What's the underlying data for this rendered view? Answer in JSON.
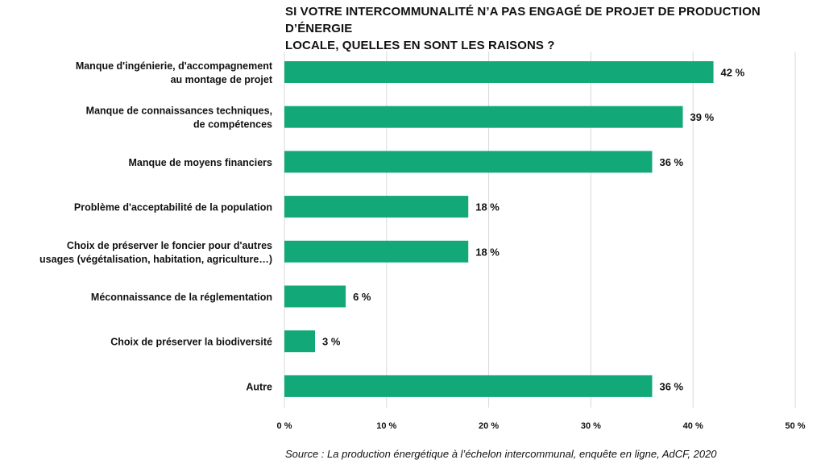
{
  "title_lines": [
    "SI VOTRE INTERCOMMUNALITÉ N’A PAS ENGAGÉ DE PROJET DE PRODUCTION D’ÉNERGIE",
    "LOCALE, QUELLES EN SONT LES RAISONS ?"
  ],
  "source": "Source : La production énergétique à l’échelon intercommunal, enquête en ligne, AdCF, 2020",
  "colors": {
    "bar": "#12A878",
    "grid": "#d9d9d9",
    "text": "#111111"
  },
  "chart_data": {
    "type": "bar",
    "orientation": "horizontal",
    "categories": [
      [
        "Manque d'ingénierie, d'accompagnement",
        "au montage de projet"
      ],
      [
        "Manque de connaissances techniques,",
        "de compétences"
      ],
      [
        "Manque de moyens financiers"
      ],
      [
        "Problème d'acceptabilité de la population"
      ],
      [
        "Choix de préserver le foncier pour d'autres",
        "usages (végétalisation, habitation, agriculture…)"
      ],
      [
        "Méconnaissance de la réglementation"
      ],
      [
        "Choix de préserver la biodiversité"
      ],
      [
        "Autre"
      ]
    ],
    "values": [
      42,
      39,
      36,
      18,
      18,
      6,
      3,
      36
    ],
    "value_labels": [
      "42 %",
      "39 %",
      "36 %",
      "18 %",
      "18 %",
      "6 %",
      "3 %",
      "36 %"
    ],
    "xlim": [
      0,
      50
    ],
    "xticks": [
      0,
      10,
      20,
      30,
      40,
      50
    ],
    "xtick_labels": [
      "0 %",
      "10 %",
      "20 %",
      "30 %",
      "40 %",
      "50 %"
    ],
    "grid": "vertical",
    "xlabel": "",
    "ylabel": ""
  }
}
